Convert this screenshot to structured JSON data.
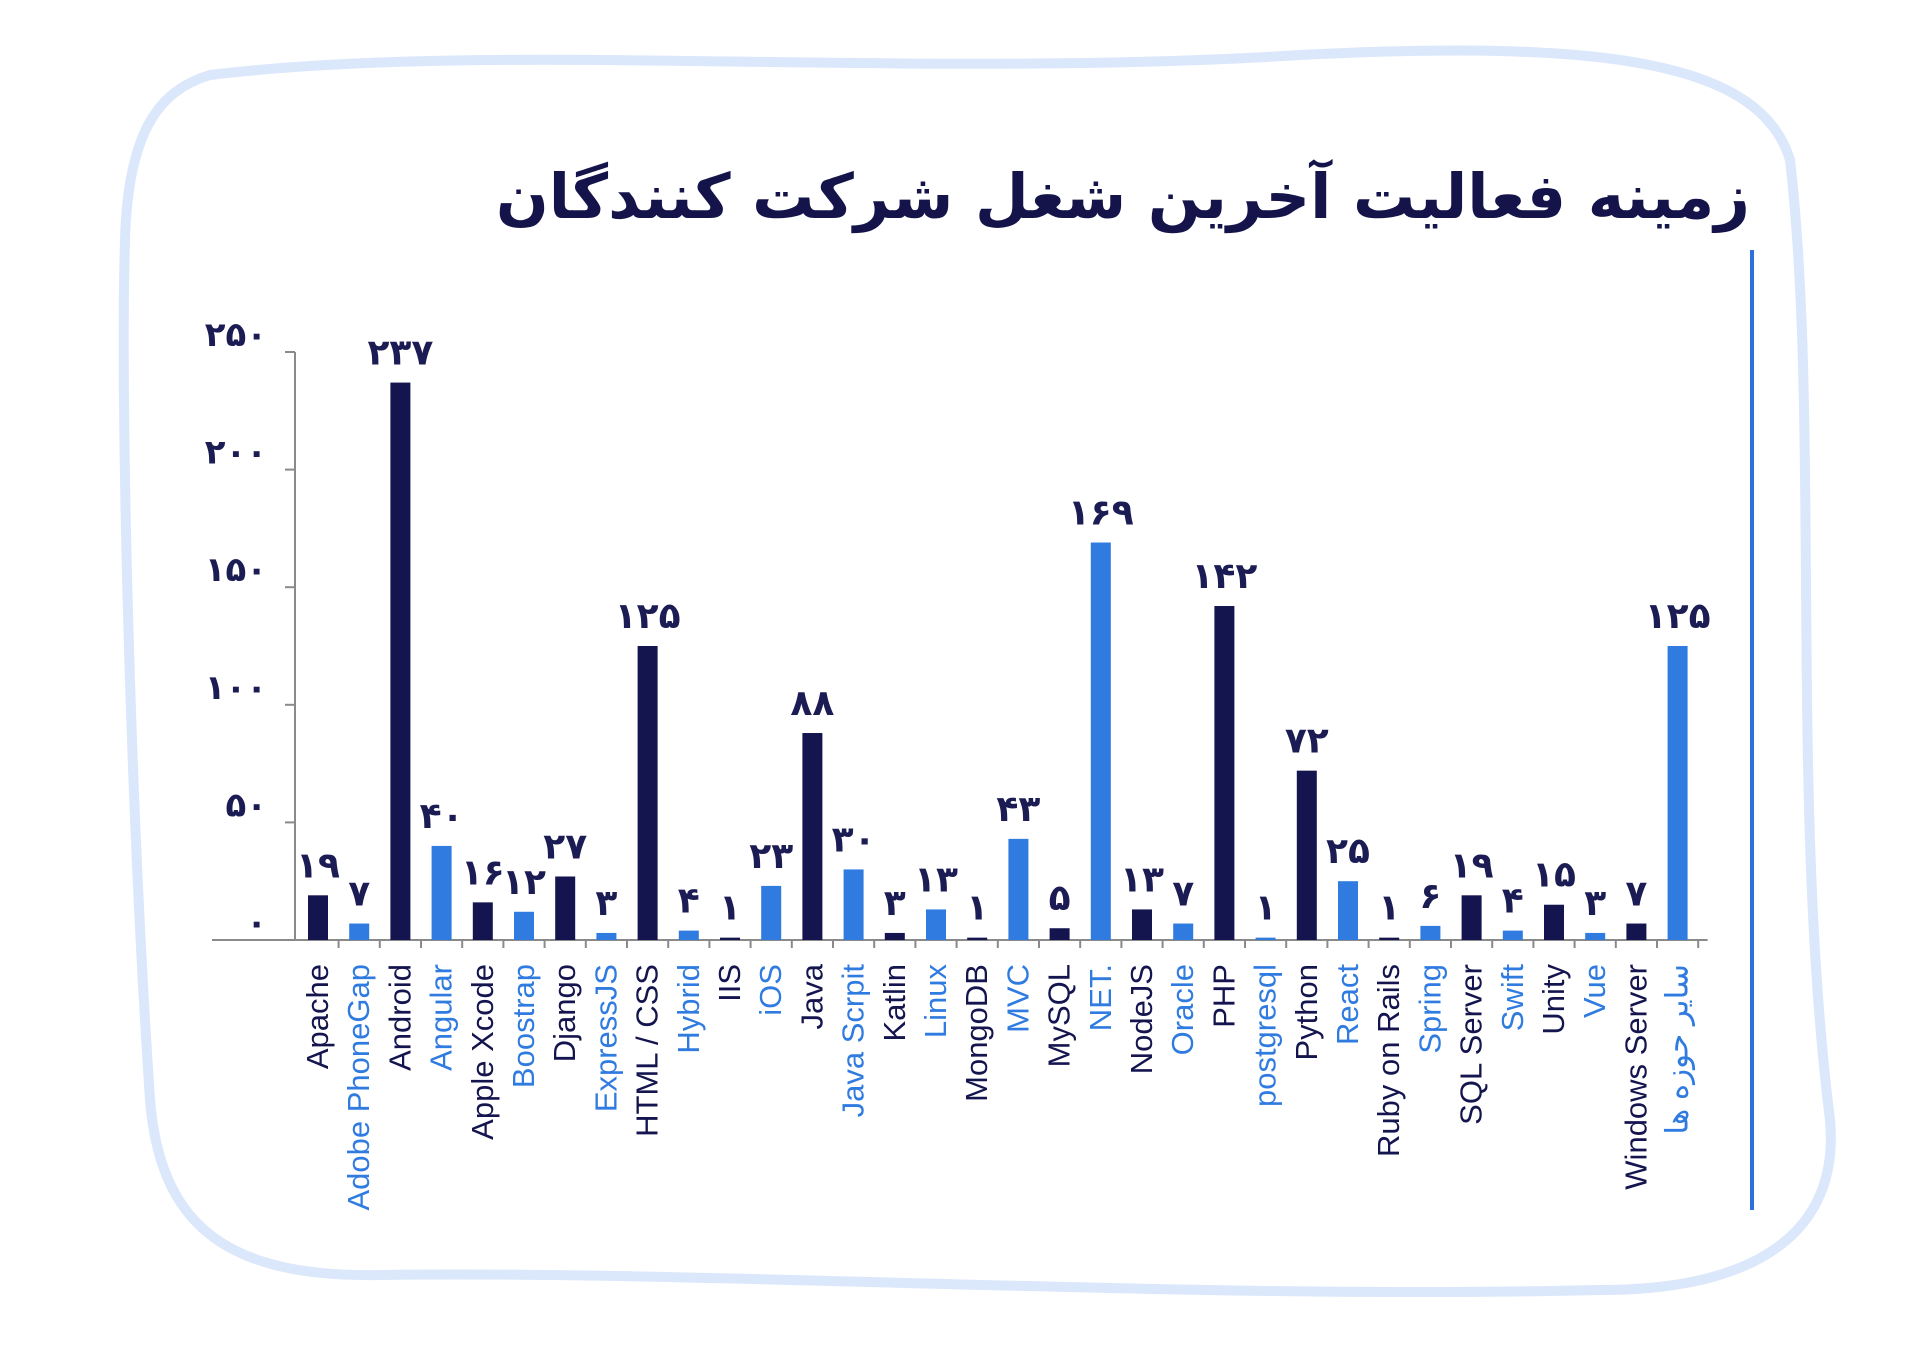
{
  "chart_data": {
    "type": "bar",
    "title": "زمینه فعالیت آخرین شغل شرکت کنندگان",
    "categories": [
      "Apache",
      "Adobe PhoneGap",
      "Android",
      "Angular",
      "Apple Xcode",
      "Boostrap",
      "Django",
      "ExpressJS",
      "HTML / CSS",
      "Hybrid",
      "IIS",
      "iOS",
      "Java",
      "Java Scrpit",
      "Katlin",
      "Linux",
      "MongoDB",
      "MVC",
      "MySQL",
      "NET.",
      "NodeJS",
      "Oracle",
      "PHP",
      "postgresql",
      "Python",
      "React",
      "Ruby on Rails",
      "Spring",
      "SQL Server",
      "Swift",
      "Unity",
      "Vue",
      "Windows Server",
      "سایر حوزه ها"
    ],
    "values": [
      19,
      7,
      237,
      40,
      16,
      12,
      27,
      3,
      125,
      4,
      1,
      23,
      88,
      30,
      3,
      13,
      1,
      43,
      5,
      169,
      13,
      7,
      142,
      1,
      72,
      25,
      1,
      6,
      19,
      4,
      15,
      3,
      7,
      125
    ],
    "value_labels": [
      "۱۹",
      "۷",
      "۲۳۷",
      "۴۰",
      "۱۶",
      "۱۲",
      "۲۷",
      "۳",
      "۱۲۵",
      "۴",
      "۱",
      "۲۳",
      "۸۸",
      "۳۰",
      "۳",
      "۱۳",
      "۱",
      "۴۳",
      "۵",
      "۱۶۹",
      "۱۳",
      "۷",
      "۱۴۲",
      "۱",
      "۷۲",
      "۲۵",
      "۱",
      "۶",
      "۱۹",
      "۴",
      "۱۵",
      "۳",
      "۷",
      "۱۲۵"
    ],
    "y_ticks": [
      0,
      50,
      100,
      150,
      200,
      250
    ],
    "y_tick_labels": [
      "۰",
      "۵۰",
      "۱۰۰",
      "۱۵۰",
      "۲۰۰",
      "۲۵۰"
    ],
    "ylim": [
      0,
      250
    ],
    "xlabel": "",
    "ylabel": "",
    "grid": false,
    "colors": {
      "dark": "#14144f",
      "light": "#2f7be0",
      "axis": "#8a8a8a",
      "frame": "#dbe7fb",
      "accent_line": "#2f6fd9"
    }
  }
}
